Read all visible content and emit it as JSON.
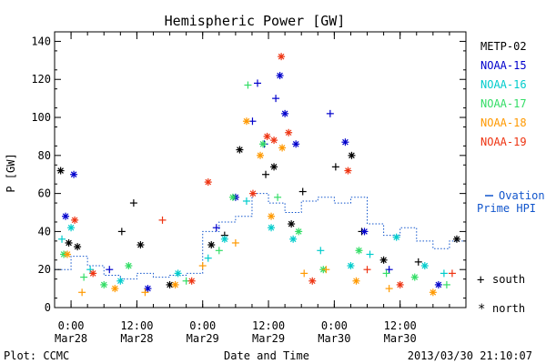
{
  "chart_data": {
    "type": "scatter",
    "title": "Hemispheric Power [GW]",
    "xlabel": "Date and Time",
    "ylabel": "P [GW]",
    "ylim": [
      0,
      145
    ],
    "yticks": [
      0,
      20,
      40,
      60,
      80,
      100,
      120,
      140
    ],
    "xlim": [
      "2013-03-27 21:00",
      "2013-03-31 00:00"
    ],
    "xticks": [
      {
        "time": "2013-03-28 00:00",
        "line1": "0:00",
        "line2": "Mar28"
      },
      {
        "time": "2013-03-28 12:00",
        "line1": "12:00",
        "line2": "Mar28"
      },
      {
        "time": "2013-03-29 00:00",
        "line1": "0:00",
        "line2": "Mar29"
      },
      {
        "time": "2013-03-29 12:00",
        "line1": "12:00",
        "line2": "Mar29"
      },
      {
        "time": "2013-03-30 00:00",
        "line1": "0:00",
        "line2": "Mar30"
      },
      {
        "time": "2013-03-30 12:00",
        "line1": "12:00",
        "line2": "Mar30"
      }
    ],
    "legend_position": "right",
    "series": [
      {
        "name": "METP-02",
        "color": "#000000",
        "points": [
          [
            "2013-03-27 22:06",
            72,
            "north"
          ],
          [
            "2013-03-27 23:35",
            34,
            "north"
          ],
          [
            "2013-03-28 01:10",
            32,
            "north"
          ],
          [
            "2013-03-28 09:15",
            40,
            "south"
          ],
          [
            "2013-03-28 11:25",
            55,
            "south"
          ],
          [
            "2013-03-28 12:40",
            33,
            "north"
          ],
          [
            "2013-03-28 18:00",
            12,
            "north"
          ],
          [
            "2013-03-29 01:35",
            33,
            "north"
          ],
          [
            "2013-03-29 04:00",
            38,
            "south"
          ],
          [
            "2013-03-29 06:45",
            83,
            "north"
          ],
          [
            "2013-03-29 11:30",
            70,
            "south"
          ],
          [
            "2013-03-29 13:00",
            74,
            "north"
          ],
          [
            "2013-03-29 16:10",
            44,
            "north"
          ],
          [
            "2013-03-29 18:15",
            61,
            "south"
          ],
          [
            "2013-03-30 00:15",
            74,
            "south"
          ],
          [
            "2013-03-30 03:10",
            80,
            "north"
          ],
          [
            "2013-03-30 05:00",
            40,
            "south"
          ],
          [
            "2013-03-30 09:00",
            25,
            "north"
          ],
          [
            "2013-03-30 15:20",
            24,
            "south"
          ],
          [
            "2013-03-30 22:20",
            36,
            "north"
          ]
        ]
      },
      {
        "name": "NOAA-15",
        "color": "#0000cc",
        "points": [
          [
            "2013-03-27 23:00",
            48,
            "north"
          ],
          [
            "2013-03-28 00:30",
            70,
            "north"
          ],
          [
            "2013-03-28 07:00",
            20,
            "south"
          ],
          [
            "2013-03-28 14:00",
            10,
            "north"
          ],
          [
            "2013-03-29 02:30",
            42,
            "south"
          ],
          [
            "2013-03-29 06:00",
            58,
            "north"
          ],
          [
            "2013-03-29 09:05",
            98,
            "south"
          ],
          [
            "2013-03-29 10:00",
            118,
            "south"
          ],
          [
            "2013-03-29 11:15",
            86,
            "south"
          ],
          [
            "2013-03-29 13:20",
            110,
            "south"
          ],
          [
            "2013-03-29 14:05",
            122,
            "north"
          ],
          [
            "2013-03-29 15:00",
            102,
            "north"
          ],
          [
            "2013-03-29 17:00",
            86,
            "north"
          ],
          [
            "2013-03-29 23:15",
            102,
            "south"
          ],
          [
            "2013-03-30 02:00",
            87,
            "north"
          ],
          [
            "2013-03-30 05:30",
            40,
            "north"
          ],
          [
            "2013-03-30 10:00",
            20,
            "south"
          ],
          [
            "2013-03-30 19:00",
            12,
            "north"
          ]
        ]
      },
      {
        "name": "NOAA-16",
        "color": "#00cccc",
        "points": [
          [
            "2013-03-27 22:20",
            36,
            "south"
          ],
          [
            "2013-03-28 00:00",
            42,
            "north"
          ],
          [
            "2013-03-28 03:30",
            20,
            "south"
          ],
          [
            "2013-03-28 09:00",
            14,
            "north"
          ],
          [
            "2013-03-28 19:30",
            18,
            "north"
          ],
          [
            "2013-03-29 01:00",
            26,
            "south"
          ],
          [
            "2013-03-29 04:00",
            36,
            "north"
          ],
          [
            "2013-03-29 08:00",
            56,
            "south"
          ],
          [
            "2013-03-29 12:30",
            42,
            "north"
          ],
          [
            "2013-03-29 16:30",
            36,
            "north"
          ],
          [
            "2013-03-29 21:30",
            30,
            "south"
          ],
          [
            "2013-03-30 03:00",
            22,
            "north"
          ],
          [
            "2013-03-30 06:30",
            28,
            "south"
          ],
          [
            "2013-03-30 11:20",
            37,
            "north"
          ],
          [
            "2013-03-30 16:30",
            22,
            "north"
          ],
          [
            "2013-03-30 20:00",
            18,
            "south"
          ]
        ]
      },
      {
        "name": "NOAA-17",
        "color": "#33dd66",
        "points": [
          [
            "2013-03-27 22:40",
            28,
            "north"
          ],
          [
            "2013-03-28 02:20",
            16,
            "south"
          ],
          [
            "2013-03-28 06:00",
            12,
            "north"
          ],
          [
            "2013-03-28 10:30",
            22,
            "north"
          ],
          [
            "2013-03-28 21:00",
            14,
            "south"
          ],
          [
            "2013-03-29 03:00",
            30,
            "south"
          ],
          [
            "2013-03-29 05:30",
            58,
            "north"
          ],
          [
            "2013-03-29 08:15",
            117,
            "south"
          ],
          [
            "2013-03-29 11:00",
            86,
            "north"
          ],
          [
            "2013-03-29 13:40",
            58,
            "south"
          ],
          [
            "2013-03-29 17:30",
            40,
            "north"
          ],
          [
            "2013-03-29 22:00",
            20,
            "north"
          ],
          [
            "2013-03-30 04:30",
            30,
            "north"
          ],
          [
            "2013-03-30 09:30",
            18,
            "south"
          ],
          [
            "2013-03-30 14:40",
            16,
            "north"
          ],
          [
            "2013-03-30 20:30",
            12,
            "south"
          ]
        ]
      },
      {
        "name": "NOAA-18",
        "color": "#ff9900",
        "points": [
          [
            "2013-03-27 23:20",
            28,
            "north"
          ],
          [
            "2013-03-28 02:00",
            8,
            "south"
          ],
          [
            "2013-03-28 08:00",
            10,
            "north"
          ],
          [
            "2013-03-28 13:30",
            8,
            "south"
          ],
          [
            "2013-03-28 19:00",
            12,
            "north"
          ],
          [
            "2013-03-29 00:00",
            22,
            "south"
          ],
          [
            "2013-03-29 06:00",
            34,
            "south"
          ],
          [
            "2013-03-29 08:00",
            98,
            "north"
          ],
          [
            "2013-03-29 10:30",
            80,
            "north"
          ],
          [
            "2013-03-29 12:30",
            48,
            "north"
          ],
          [
            "2013-03-29 14:30",
            84,
            "north"
          ],
          [
            "2013-03-29 18:30",
            18,
            "south"
          ],
          [
            "2013-03-29 22:30",
            20,
            "south"
          ],
          [
            "2013-03-30 04:00",
            14,
            "north"
          ],
          [
            "2013-03-30 10:00",
            10,
            "south"
          ],
          [
            "2013-03-30 18:00",
            8,
            "north"
          ]
        ]
      },
      {
        "name": "NOAA-19",
        "color": "#ee3311",
        "points": [
          [
            "2013-03-28 00:40",
            46,
            "north"
          ],
          [
            "2013-03-28 04:00",
            18,
            "north"
          ],
          [
            "2013-03-28 16:40",
            46,
            "south"
          ],
          [
            "2013-03-28 22:00",
            14,
            "north"
          ],
          [
            "2013-03-29 01:00",
            66,
            "north"
          ],
          [
            "2013-03-29 09:10",
            60,
            "north"
          ],
          [
            "2013-03-29 11:45",
            90,
            "north"
          ],
          [
            "2013-03-29 13:00",
            88,
            "north"
          ],
          [
            "2013-03-29 14:20",
            132,
            "north"
          ],
          [
            "2013-03-29 15:40",
            92,
            "north"
          ],
          [
            "2013-03-29 20:00",
            14,
            "north"
          ],
          [
            "2013-03-30 02:30",
            72,
            "north"
          ],
          [
            "2013-03-30 06:00",
            20,
            "south"
          ],
          [
            "2013-03-30 12:00",
            12,
            "north"
          ],
          [
            "2013-03-30 21:30",
            18,
            "south"
          ]
        ]
      }
    ],
    "ovation_label_line1": "Ovation",
    "ovation_label_line2": "Prime HPI",
    "ovation_color": "#1155cc",
    "ovation_hpi": [
      [
        "2013-03-27 21:00",
        20
      ],
      [
        "2013-03-28 00:00",
        27
      ],
      [
        "2013-03-28 03:00",
        22
      ],
      [
        "2013-03-28 06:00",
        17
      ],
      [
        "2013-03-28 09:00",
        15
      ],
      [
        "2013-03-28 12:00",
        18
      ],
      [
        "2013-03-28 15:00",
        16
      ],
      [
        "2013-03-28 18:00",
        17
      ],
      [
        "2013-03-28 21:00",
        18
      ],
      [
        "2013-03-29 00:00",
        40
      ],
      [
        "2013-03-29 03:00",
        45
      ],
      [
        "2013-03-29 06:00",
        48
      ],
      [
        "2013-03-29 09:00",
        60
      ],
      [
        "2013-03-29 12:00",
        55
      ],
      [
        "2013-03-29 15:00",
        50
      ],
      [
        "2013-03-29 18:00",
        56
      ],
      [
        "2013-03-29 21:00",
        58
      ],
      [
        "2013-03-30 00:00",
        55
      ],
      [
        "2013-03-30 03:00",
        58
      ],
      [
        "2013-03-30 06:00",
        44
      ],
      [
        "2013-03-30 09:00",
        38
      ],
      [
        "2013-03-30 12:00",
        42
      ],
      [
        "2013-03-30 15:00",
        35
      ],
      [
        "2013-03-30 18:00",
        31
      ],
      [
        "2013-03-30 21:00",
        35
      ]
    ],
    "symbol_legend": [
      {
        "symbol": "+",
        "label": "south"
      },
      {
        "symbol": "*",
        "label": "north"
      }
    ]
  },
  "footer": {
    "plot_credit": "Plot: CCMC",
    "timestamp": "2013/03/30 21:10:07"
  }
}
